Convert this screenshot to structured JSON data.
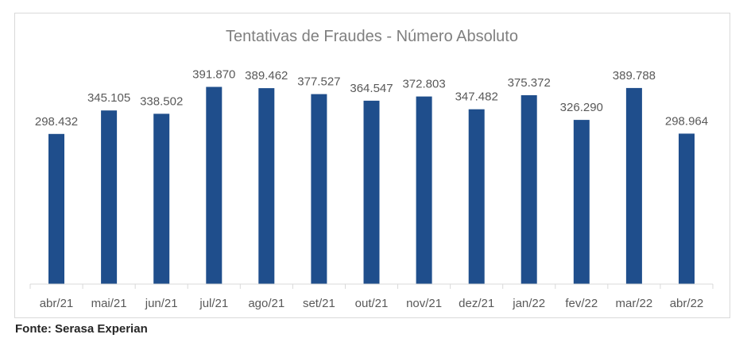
{
  "chart_data": {
    "type": "bar",
    "title": "Tentativas de Fraudes - Número Absoluto",
    "categories": [
      "abr/21",
      "mai/21",
      "jun/21",
      "jul/21",
      "ago/21",
      "set/21",
      "out/21",
      "nov/21",
      "dez/21",
      "jan/22",
      "fev/22",
      "mar/22",
      "abr/22"
    ],
    "values": [
      298432,
      345105,
      338502,
      391870,
      389462,
      377527,
      364547,
      372803,
      347482,
      375372,
      326290,
      389788,
      298964
    ],
    "value_labels": [
      "298.432",
      "345.105",
      "338.502",
      "391.870",
      "389.462",
      "377.527",
      "364.547",
      "372.803",
      "347.482",
      "375.372",
      "326.290",
      "389.788",
      "298.964"
    ],
    "xlabel": "",
    "ylabel": "",
    "ylim": [
      0,
      470000
    ],
    "grid": false,
    "legend": "none",
    "bar_color": "#1f4e8c"
  },
  "source": "Fonte: Serasa Experian"
}
